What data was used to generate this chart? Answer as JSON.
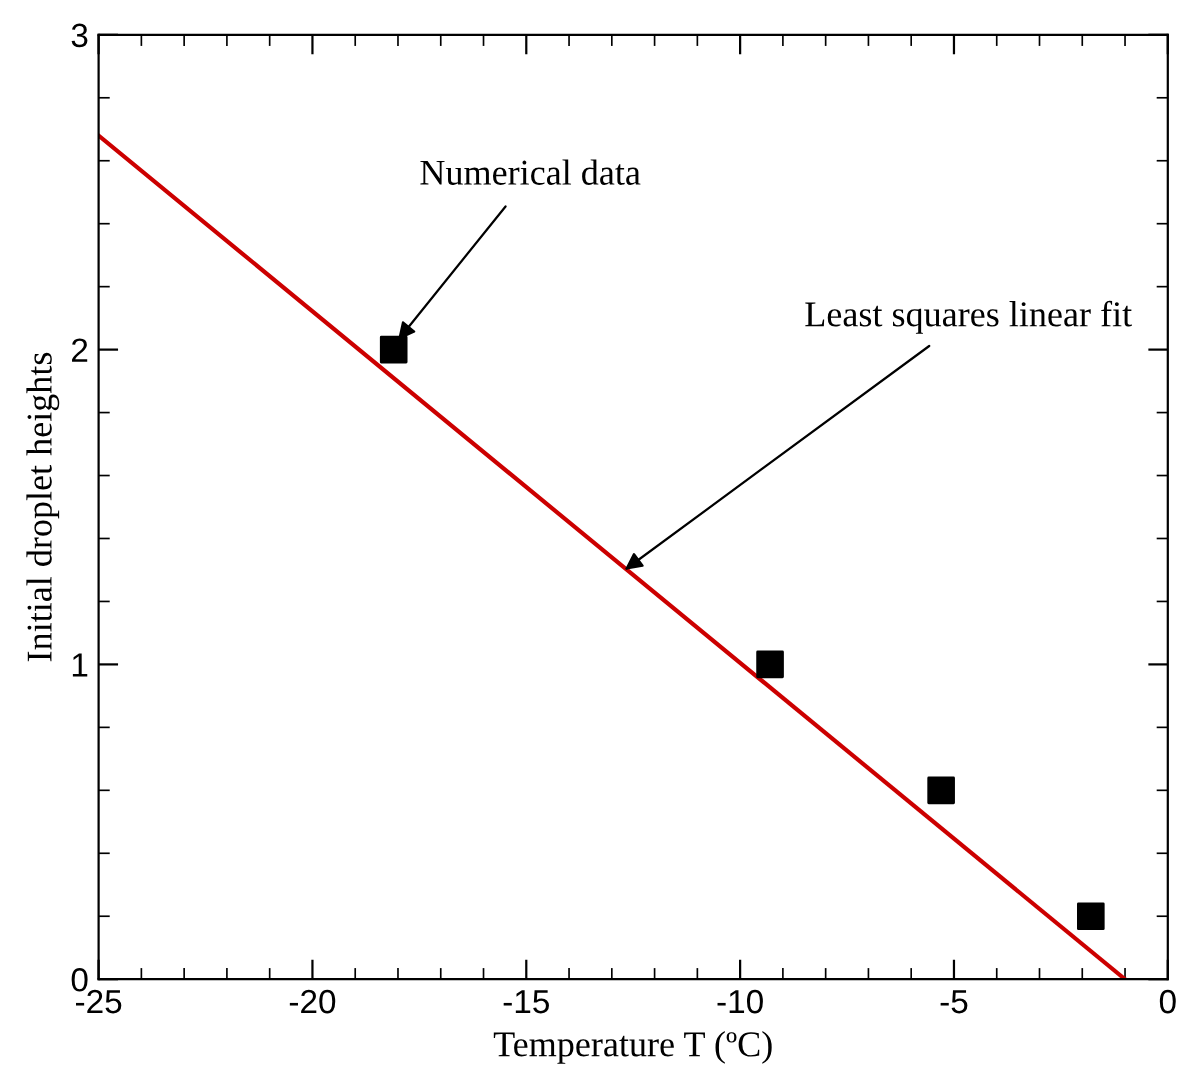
{
  "chart_data": {
    "type": "scatter",
    "xlabel": "Temperature T (ºC)",
    "ylabel": "Initial droplet heights",
    "series": [
      {
        "color": "#000000",
        "marker": "square",
        "x": [
          -18.1,
          -9.3,
          -5.3,
          -1.8
        ],
        "values": [
          2.0,
          1.0,
          0.6,
          0.2
        ]
      },
      {
        "type": "line",
        "color": "#cc0000",
        "marker": "none",
        "line_style": "solid",
        "x": [
          -25,
          -1.0
        ],
        "values": [
          2.68,
          0
        ]
      }
    ],
    "annotations": [
      {
        "text": "Numerical data",
        "x": -18.0,
        "y": 2.03
      },
      {
        "text": "Least squares linear fit",
        "x": -12.7,
        "y": 1.3
      }
    ],
    "xlim": [
      -25,
      0
    ],
    "xticks": [
      -25,
      -20,
      -15,
      -10,
      -5,
      0
    ],
    "ylim": [
      0,
      3
    ],
    "yticks": [
      0,
      1,
      2,
      3
    ],
    "grid": false,
    "legend": false
  }
}
